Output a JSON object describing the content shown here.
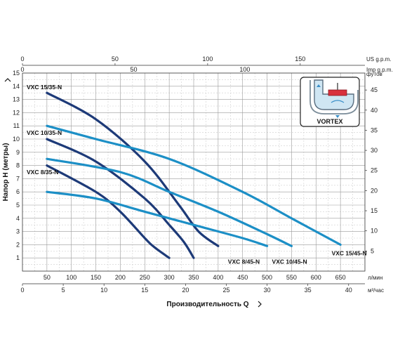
{
  "chart_data": {
    "type": "line",
    "x_unit": "л/мин",
    "x_range": [
      0,
      700
    ],
    "x_ticks": [
      50,
      100,
      150,
      200,
      250,
      300,
      350,
      400,
      450,
      500,
      550,
      600,
      650
    ],
    "y_range": [
      0,
      15
    ],
    "y_ticks": [
      1,
      2,
      3,
      4,
      5,
      6,
      7,
      8,
      9,
      10,
      11,
      12,
      13,
      14,
      15
    ],
    "ylabel": "Напор Н (метры)",
    "xlabel": "Производительность Q",
    "top_axis_us": {
      "unit": "US g.p.m.",
      "ticks": [
        0,
        50,
        100,
        150
      ]
    },
    "top_axis_imp": {
      "unit": "Imp g.p.m.",
      "ticks": [
        0,
        50,
        100
      ]
    },
    "right_axis": {
      "unit": "футов",
      "ticks": [
        5,
        10,
        15,
        20,
        25,
        30,
        35,
        40,
        45
      ]
    },
    "bottom_axis_m3h": {
      "unit": "м³/час",
      "ticks": [
        0,
        5,
        10,
        15,
        20,
        25,
        30,
        35,
        40
      ]
    },
    "grid": true,
    "inset_label": "VORTEX",
    "series": [
      {
        "name": "VXC 15/35-N",
        "color": "#1d3a78",
        "x": [
          50,
          150,
          250,
          320,
          360,
          400
        ],
        "y": [
          13.5,
          11.5,
          8.3,
          5.0,
          3.0,
          1.9
        ]
      },
      {
        "name": "VXC 10/35-N",
        "color": "#1d3a78",
        "x": [
          50,
          150,
          250,
          300,
          330,
          350
        ],
        "y": [
          10.0,
          8.3,
          5.5,
          3.5,
          2.2,
          1.0
        ]
      },
      {
        "name": "VXC 8/35-N",
        "color": "#1d3a78",
        "x": [
          50,
          150,
          200,
          250,
          270,
          300
        ],
        "y": [
          8.0,
          6.0,
          4.5,
          2.5,
          1.8,
          1.0
        ]
      },
      {
        "name": "VXC 15/45-N",
        "color": "#1c8fc6",
        "x": [
          50,
          150,
          300,
          450,
          550,
          650
        ],
        "y": [
          11.0,
          10.0,
          8.5,
          6.0,
          4.0,
          2.0
        ]
      },
      {
        "name": "VXC 10/45-N",
        "color": "#1c8fc6",
        "x": [
          50,
          200,
          300,
          400,
          500,
          550
        ],
        "y": [
          8.5,
          7.5,
          6.0,
          4.5,
          2.8,
          1.9
        ]
      },
      {
        "name": "VXC 8/45-N",
        "color": "#1c8fc6",
        "x": [
          50,
          150,
          250,
          350,
          450,
          500
        ],
        "y": [
          6.0,
          5.5,
          4.5,
          3.5,
          2.5,
          1.9
        ]
      }
    ],
    "curve_labels": [
      {
        "text": "VXC 15/35-N"
      },
      {
        "text": "VXC 10/35-N"
      },
      {
        "text": "VXC 8/35-N"
      },
      {
        "text": "VXC 8/45-N"
      },
      {
        "text": "VXC 10/45-N"
      },
      {
        "text": "VXC 15/45-N"
      }
    ]
  }
}
